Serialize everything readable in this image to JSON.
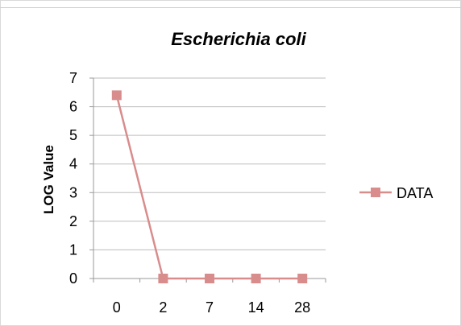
{
  "chart_data": {
    "type": "line",
    "title": "Escherichia coli",
    "xlabel": "",
    "ylabel": "LOG Value",
    "categories": [
      "0",
      "2",
      "7",
      "14",
      "28"
    ],
    "series": [
      {
        "name": "DATA",
        "values": [
          6.4,
          0,
          0,
          0,
          0
        ],
        "color": "#d98c8c"
      }
    ],
    "ylim": [
      0,
      7
    ],
    "yticks": [
      0,
      1,
      2,
      3,
      4,
      5,
      6,
      7
    ],
    "grid": true,
    "legend": "right",
    "marker": "square"
  }
}
